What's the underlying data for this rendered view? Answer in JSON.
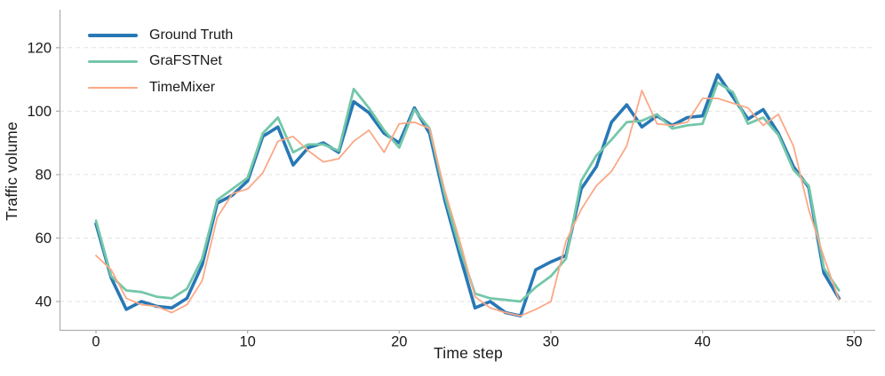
{
  "chart_data": {
    "type": "line",
    "title": "",
    "xlabel": "Time step",
    "ylabel": "Traffic volume",
    "x": [
      0,
      1,
      2,
      3,
      4,
      5,
      6,
      7,
      8,
      9,
      10,
      11,
      12,
      13,
      14,
      15,
      16,
      17,
      18,
      19,
      20,
      21,
      22,
      23,
      24,
      25,
      26,
      27,
      28,
      29,
      30,
      31,
      32,
      33,
      34,
      35,
      36,
      37,
      38,
      39,
      40,
      41,
      42,
      43,
      44,
      45,
      46,
      47,
      48,
      49
    ],
    "x_ticks": [
      0,
      10,
      20,
      30,
      40,
      50
    ],
    "y_ticks": [
      40,
      60,
      80,
      100,
      120
    ],
    "xlim": [
      -2.4,
      51.3
    ],
    "ylim": [
      31,
      132
    ],
    "grid": "horizontal-dashed",
    "legend_position": "upper-left",
    "series": [
      {
        "name": "Ground Truth",
        "color": "#2878b5",
        "line_width": 3.6,
        "values": [
          64.5,
          47.5,
          37.5,
          40,
          38.5,
          38,
          41,
          51.5,
          71,
          73.5,
          78,
          92,
          95,
          83,
          88.5,
          90,
          87,
          103,
          99.5,
          93,
          90,
          101,
          93,
          72,
          54.5,
          38,
          40,
          36.5,
          35.5,
          50,
          52.5,
          54.5,
          75.5,
          82.5,
          96.5,
          102,
          95,
          98.5,
          95.5,
          98,
          98.5,
          111.5,
          104.5,
          97.5,
          100.5,
          93,
          82.5,
          76,
          49,
          41
        ]
      },
      {
        "name": "GraFSTNet",
        "color": "#74c7a9",
        "line_width": 2.8,
        "values": [
          65.5,
          48,
          43.5,
          43,
          41.5,
          41,
          44,
          53.5,
          72,
          75.5,
          79,
          93,
          98,
          87,
          89.5,
          89.5,
          87.5,
          107,
          101,
          94,
          88.5,
          100.5,
          94.5,
          73.5,
          56.5,
          42.5,
          41,
          40.5,
          40,
          44.5,
          48,
          53.5,
          78,
          86,
          91,
          96.5,
          97,
          99,
          94.5,
          95.5,
          96,
          109,
          106,
          96,
          98,
          92.5,
          81.5,
          76.5,
          50.5,
          43.5
        ]
      },
      {
        "name": "TimeMixer",
        "color": "#fba886",
        "line_width": 1.8,
        "values": [
          54.5,
          50,
          41,
          39,
          38.5,
          36.5,
          39,
          46.5,
          66.5,
          74,
          75.5,
          80.5,
          90.5,
          92,
          87.5,
          84,
          85,
          90.5,
          94,
          87,
          96,
          96.5,
          94.5,
          75,
          59,
          41.5,
          38,
          36.5,
          35.5,
          37.5,
          40,
          59,
          69,
          76.5,
          81,
          89,
          106.5,
          96,
          95.5,
          96.5,
          104,
          104,
          102.5,
          101,
          95.5,
          99,
          89,
          69,
          54,
          40.5
        ]
      }
    ],
    "style": {
      "grid_color": "#e2e2e2",
      "spine_color": "#b0b0b0",
      "tick_label_color": "#1a1a1a"
    }
  }
}
